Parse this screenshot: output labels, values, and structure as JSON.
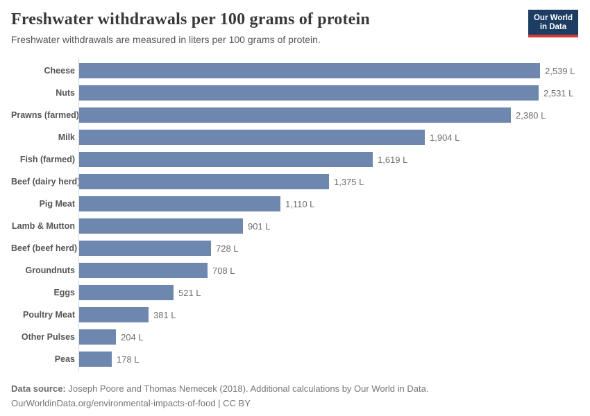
{
  "header": {
    "title": "Freshwater withdrawals per 100 grams of protein",
    "subtitle": "Freshwater withdrawals are measured in liters per 100 grams of protein.",
    "logo": {
      "line1": "Our World",
      "line2": "in Data",
      "bg_color": "#1d3d63",
      "accent_color": "#d73c34"
    }
  },
  "chart_data": {
    "type": "bar",
    "orientation": "horizontal",
    "title": "Freshwater withdrawals per 100 grams of protein",
    "subtitle": "Freshwater withdrawals are measured in liters per 100 grams of protein.",
    "xlabel": "",
    "ylabel": "",
    "unit": "liters per 100 grams of protein",
    "value_suffix": " L",
    "xlim": [
      0,
      2539
    ],
    "grid": false,
    "legend": false,
    "bar_color": "#6d87ae",
    "axis_line_color": "#dcdcdc",
    "categories": [
      "Cheese",
      "Nuts",
      "Prawns (farmed)",
      "Milk",
      "Fish (farmed)",
      "Beef (dairy herd)",
      "Pig Meat",
      "Lamb & Mutton",
      "Beef (beef herd)",
      "Groundnuts",
      "Eggs",
      "Poultry Meat",
      "Other Pulses",
      "Peas"
    ],
    "values": [
      2539,
      2531,
      2380,
      1904,
      1619,
      1375,
      1110,
      901,
      728,
      708,
      521,
      381,
      204,
      178
    ],
    "value_labels": [
      "2,539 L",
      "2,531 L",
      "2,380 L",
      "1,904 L",
      "1,619 L",
      "1,375 L",
      "1,110 L",
      "901 L",
      "728 L",
      "708 L",
      "521 L",
      "381 L",
      "204 L",
      "178 L"
    ]
  },
  "footer": {
    "source_label": "Data source:",
    "source_text": "Joseph Poore and Thomas Nemecek (2018). Additional calculations by Our World in Data.",
    "citation": "OurWorldinData.org/environmental-impacts-of-food | CC BY"
  }
}
